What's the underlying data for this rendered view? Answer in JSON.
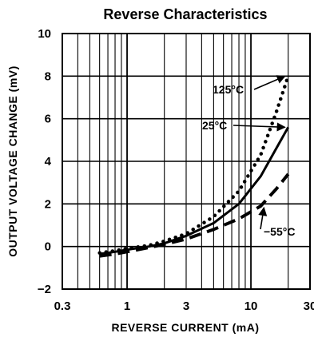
{
  "chart_data": {
    "type": "line",
    "title": "Reverse Characteristics",
    "xlabel": "REVERSE CURRENT (mA)",
    "ylabel": "OUTPUT VOLTAGE CHANGE (mV)",
    "x_scale": "log",
    "xlim": [
      0.3,
      30
    ],
    "ylim": [
      -2,
      10
    ],
    "x_ticks": [
      0.3,
      1,
      3,
      10,
      30
    ],
    "x_tick_labels": [
      "0.3",
      "1",
      "3",
      "10",
      "30"
    ],
    "y_ticks": [
      -2,
      0,
      2,
      4,
      6,
      8,
      10
    ],
    "y_tick_labels": [
      "−2",
      "0",
      "2",
      "4",
      "6",
      "8",
      "10"
    ],
    "grid": true,
    "series": [
      {
        "name": "125°C",
        "line_style": "dotted",
        "x": [
          0.6,
          0.8,
          1.0,
          1.5,
          2.0,
          3.0,
          5.0,
          8.0,
          12.0,
          16.0,
          20.0
        ],
        "y": [
          -0.3,
          -0.2,
          -0.1,
          0.05,
          0.25,
          0.6,
          1.4,
          2.6,
          4.3,
          6.3,
          8.0
        ]
      },
      {
        "name": "25°C",
        "line_style": "solid",
        "x": [
          0.6,
          0.8,
          1.0,
          1.5,
          2.0,
          3.0,
          5.0,
          8.0,
          12.0,
          16.0,
          20.0
        ],
        "y": [
          -0.35,
          -0.25,
          -0.15,
          0.0,
          0.15,
          0.5,
          1.1,
          2.0,
          3.3,
          4.6,
          5.6
        ]
      },
      {
        "name": "−55°C",
        "line_style": "dashed",
        "x": [
          0.6,
          0.8,
          1.0,
          1.5,
          2.0,
          3.0,
          5.0,
          8.0,
          12.0,
          16.0,
          20.0
        ],
        "y": [
          -0.45,
          -0.35,
          -0.25,
          -0.05,
          0.1,
          0.35,
          0.8,
          1.3,
          1.9,
          2.7,
          3.4
        ]
      }
    ],
    "annotations": [
      {
        "text": "125°C",
        "series": 0
      },
      {
        "text": "25°C",
        "series": 1
      },
      {
        "text": "−55°C",
        "series": 2
      }
    ]
  }
}
